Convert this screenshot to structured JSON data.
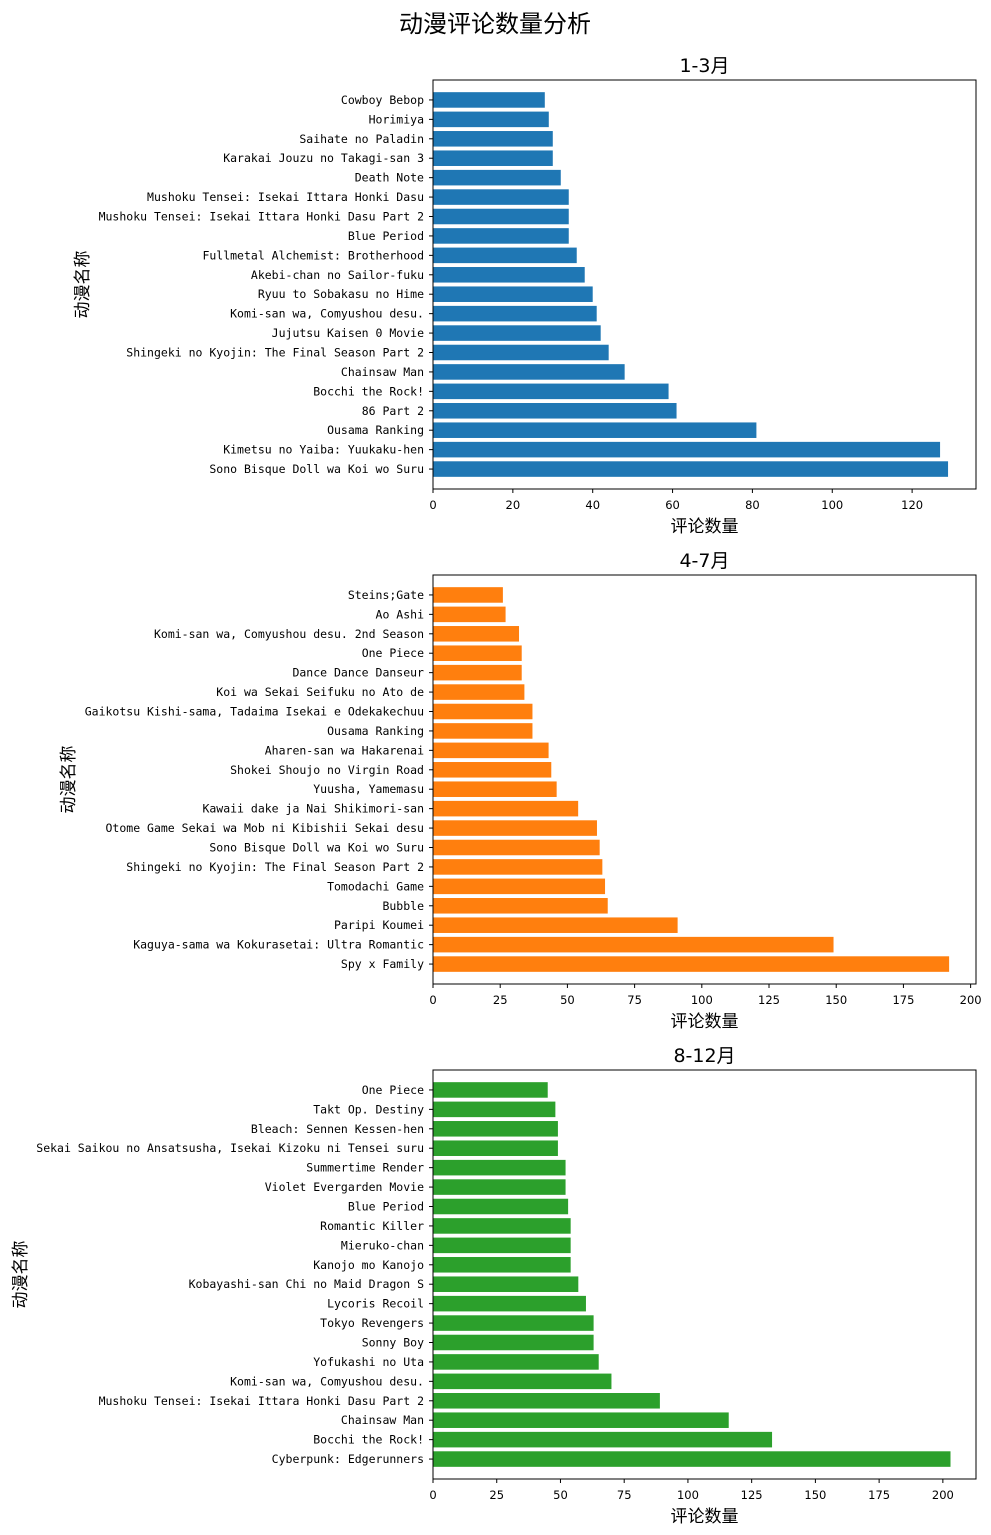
{
  "title": "动漫评论数量分析",
  "chart_data": [
    {
      "type": "bar",
      "orientation": "horizontal",
      "title": "1-3月",
      "xlabel": "评论数量",
      "ylabel": "动漫名称",
      "color": "#1f77b4",
      "xlim": [
        0,
        136
      ],
      "xticks": [
        0,
        20,
        40,
        60,
        80,
        100,
        120
      ],
      "categories": [
        "Sono Bisque Doll wa Koi wo Suru",
        "Kimetsu no Yaiba: Yuukaku-hen",
        "Ousama Ranking",
        "86 Part 2",
        "Bocchi the Rock!",
        "Chainsaw Man",
        "Shingeki no Kyojin: The Final Season Part 2",
        "Jujutsu Kaisen 0 Movie",
        "Komi-san wa, Comyushou desu.",
        "Ryuu to Sobakasu no Hime",
        "Akebi-chan no Sailor-fuku",
        "Fullmetal Alchemist: Brotherhood",
        "Blue Period",
        "Mushoku Tensei: Isekai Ittara Honki Dasu Part 2",
        "Mushoku Tensei: Isekai Ittara Honki Dasu",
        "Death Note",
        "Karakai Jouzu no Takagi-san 3",
        "Saihate no Paladin",
        "Horimiya",
        "Cowboy Bebop"
      ],
      "values": [
        129,
        127,
        81,
        61,
        59,
        48,
        44,
        42,
        41,
        40,
        38,
        36,
        34,
        34,
        34,
        32,
        30,
        30,
        29,
        28
      ]
    },
    {
      "type": "bar",
      "orientation": "horizontal",
      "title": "4-7月",
      "xlabel": "评论数量",
      "ylabel": "动漫名称",
      "color": "#ff7f0e",
      "xlim": [
        0,
        202
      ],
      "xticks": [
        0,
        25,
        50,
        75,
        100,
        125,
        150,
        175,
        200
      ],
      "categories": [
        "Spy x Family",
        "Kaguya-sama wa Kokurasetai: Ultra Romantic",
        "Paripi Koumei",
        "Bubble",
        "Tomodachi Game",
        "Shingeki no Kyojin: The Final Season Part 2",
        "Sono Bisque Doll wa Koi wo Suru",
        "Otome Game Sekai wa Mob ni Kibishii Sekai desu",
        "Kawaii dake ja Nai Shikimori-san",
        "Yuusha, Yamemasu",
        "Shokei Shoujo no Virgin Road",
        "Aharen-san wa Hakarenai",
        "Ousama Ranking",
        "Gaikotsu Kishi-sama, Tadaima Isekai e Odekakechuu",
        "Koi wa Sekai Seifuku no Ato de",
        "Dance Dance Danseur",
        "One Piece",
        "Komi-san wa, Comyushou desu. 2nd Season",
        "Ao Ashi",
        "Steins;Gate"
      ],
      "values": [
        192,
        149,
        91,
        65,
        64,
        63,
        62,
        61,
        54,
        46,
        44,
        43,
        37,
        37,
        34,
        33,
        33,
        32,
        27,
        26
      ]
    },
    {
      "type": "bar",
      "orientation": "horizontal",
      "title": "8-12月",
      "xlabel": "评论数量",
      "ylabel": "动漫名称",
      "color": "#2ca02c",
      "xlim": [
        0,
        213
      ],
      "xticks": [
        0,
        25,
        50,
        75,
        100,
        125,
        150,
        175,
        200
      ],
      "categories": [
        "Cyberpunk: Edgerunners",
        "Bocchi the Rock!",
        "Chainsaw Man",
        "Mushoku Tensei: Isekai Ittara Honki Dasu Part 2",
        "Komi-san wa, Comyushou desu.",
        "Yofukashi no Uta",
        "Sonny Boy",
        "Tokyo Revengers",
        "Lycoris Recoil",
        "Kobayashi-san Chi no Maid Dragon S",
        "Kanojo mo Kanojo",
        "Mieruko-chan",
        "Romantic Killer",
        "Blue Period",
        "Violet Evergarden Movie",
        "Summertime Render",
        "Sekai Saikou no Ansatsusha, Isekai Kizoku ni Tensei suru",
        "Bleach: Sennen Kessen-hen",
        "Takt Op. Destiny",
        "One Piece"
      ],
      "values": [
        203,
        133,
        116,
        89,
        70,
        65,
        63,
        63,
        60,
        57,
        54,
        54,
        54,
        53,
        52,
        52,
        49,
        49,
        48,
        45
      ]
    }
  ]
}
